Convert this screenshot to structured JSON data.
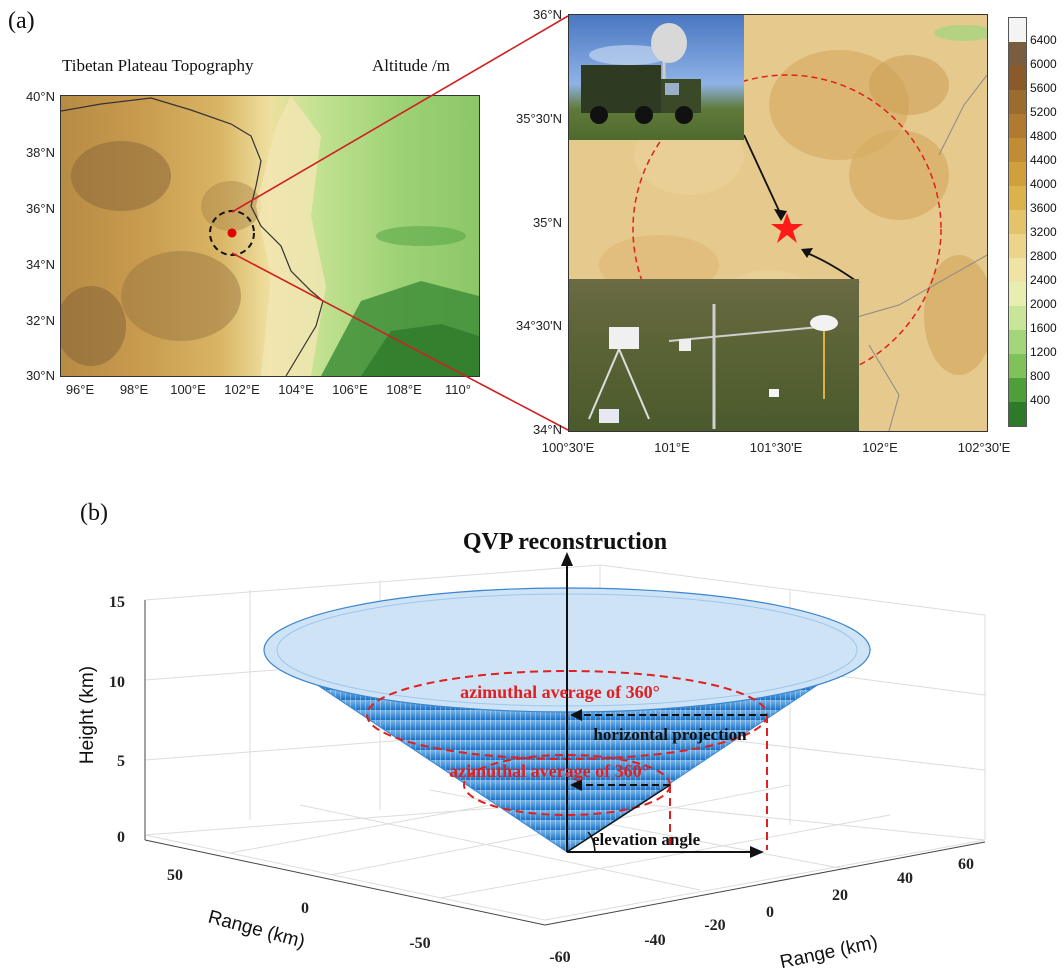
{
  "panel_a": {
    "label": "(a)",
    "left_map": {
      "title": "Tibetan Plateau Topography",
      "unit_label": "Altitude /m",
      "lat_ticks": [
        "40°N",
        "38°N",
        "36°N",
        "34°N",
        "32°N",
        "30°N"
      ],
      "lon_ticks": [
        "96°E",
        "98°E",
        "100°E",
        "102°E",
        "104°E",
        "106°E",
        "108°E",
        "110°"
      ]
    },
    "right_map": {
      "lat_ticks": [
        "36°N",
        "35°30'N",
        "35°N",
        "34°30'N",
        "34°N"
      ],
      "lon_ticks": [
        "100°30'E",
        "101°E",
        "101°30'E",
        "102°E",
        "102°30'E"
      ]
    },
    "colorbar": {
      "ticks": [
        "6400",
        "6000",
        "5600",
        "5200",
        "4800",
        "4400",
        "4000",
        "3600",
        "3200",
        "2800",
        "2400",
        "2000",
        "1600",
        "1200",
        "800",
        "400"
      ],
      "colors": [
        "#f4f4f4",
        "#7a5c3e",
        "#8a5a2b",
        "#9c6b2e",
        "#b07a30",
        "#c08c34",
        "#cfa03c",
        "#dbb24c",
        "#e4c46a",
        "#ecd58a",
        "#f0e3a6",
        "#e8eeb0",
        "#c7e69a",
        "#a3d67a",
        "#7fc25a",
        "#4e9e3a",
        "#2d7a2a"
      ]
    }
  },
  "panel_b": {
    "label": "(b)",
    "title": "QVP reconstruction",
    "zlabel": "Height (km)",
    "xlabel_left": "Range (km)",
    "xlabel_right": "Range (km)",
    "z_ticks": [
      "15",
      "10",
      "5",
      "0"
    ],
    "left_range_ticks": [
      "50",
      "0",
      "-50"
    ],
    "right_range_ticks": [
      "-60",
      "-40",
      "-20",
      "0",
      "20",
      "40",
      "60"
    ],
    "annotations": {
      "azimuthal_top": "azimuthal average of 360°",
      "azimuthal_bottom": "azimuthal average of 360°",
      "horizontal_projection": "horizontal projection",
      "elevation_angle": "elevation angle"
    }
  }
}
